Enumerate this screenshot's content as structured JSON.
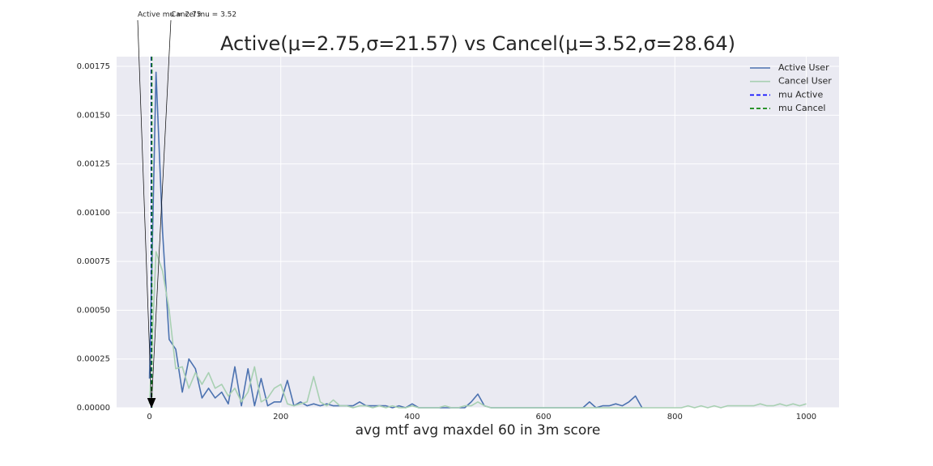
{
  "chart_data": {
    "type": "line",
    "title": "Active(μ=2.75,σ=21.57) vs Cancel(μ=3.52,σ=28.64)",
    "x_label": "avg mtf avg maxdel 60 in 3m score",
    "x": [
      0,
      10,
      20,
      30,
      40,
      50,
      60,
      70,
      80,
      90,
      100,
      110,
      120,
      130,
      140,
      150,
      160,
      170,
      180,
      190,
      200,
      210,
      220,
      230,
      240,
      250,
      260,
      270,
      280,
      290,
      300,
      310,
      320,
      330,
      340,
      350,
      360,
      370,
      380,
      390,
      400,
      410,
      420,
      430,
      440,
      450,
      460,
      470,
      480,
      490,
      500,
      510,
      520,
      530,
      540,
      550,
      560,
      570,
      580,
      590,
      600,
      610,
      620,
      630,
      640,
      650,
      660,
      670,
      680,
      690,
      700,
      710,
      720,
      730,
      740,
      750,
      760,
      770,
      780,
      790,
      800,
      810,
      820,
      830,
      840,
      850,
      860,
      870,
      880,
      890,
      900,
      910,
      920,
      930,
      940,
      950,
      960,
      970,
      980,
      990,
      1000
    ],
    "series": [
      {
        "name": "Active User",
        "color": "#4c72b0",
        "values": [
          0.00015,
          0.00172,
          0.0009,
          0.00035,
          0.0003,
          8e-05,
          0.00025,
          0.0002,
          5e-05,
          0.0001,
          5e-05,
          8e-05,
          2e-05,
          0.00021,
          1e-05,
          0.0002,
          1e-05,
          0.00015,
          1e-05,
          3e-05,
          3e-05,
          0.00014,
          1e-05,
          3e-05,
          1e-05,
          2e-05,
          1e-05,
          2e-05,
          1e-05,
          1e-05,
          1e-05,
          1e-05,
          3e-05,
          1e-05,
          1e-05,
          1e-05,
          1e-05,
          0,
          1e-05,
          0,
          2e-05,
          0,
          0,
          0,
          0,
          0,
          0,
          0,
          0,
          3e-05,
          7e-05,
          1e-05,
          0,
          0,
          0,
          0,
          0,
          0,
          0,
          0,
          0,
          0,
          0,
          0,
          0,
          0,
          0,
          3e-05,
          0,
          1e-05,
          1e-05,
          2e-05,
          1e-05,
          3e-05,
          6e-05,
          0,
          null,
          null,
          null,
          null,
          null,
          null,
          null,
          null,
          null,
          null,
          null,
          null,
          null,
          null,
          null,
          null,
          null,
          null,
          null,
          null,
          null,
          null,
          null,
          null,
          null
        ]
      },
      {
        "name": "Cancel User",
        "color": "#a8d0b2",
        "values": [
          2e-05,
          0.0008,
          0.0007,
          0.0005,
          0.0002,
          0.00021,
          0.0001,
          0.00018,
          0.00012,
          0.00018,
          0.0001,
          0.00012,
          6e-05,
          0.0001,
          3e-05,
          8e-05,
          0.00021,
          3e-05,
          5e-05,
          0.0001,
          0.00012,
          2e-05,
          1e-05,
          2e-05,
          3e-05,
          0.00016,
          3e-05,
          1e-05,
          4e-05,
          1e-05,
          1e-05,
          0,
          1e-05,
          1e-05,
          0,
          1e-05,
          0,
          1e-05,
          0,
          0,
          1e-05,
          0,
          0,
          0,
          0,
          1e-05,
          0,
          0,
          1e-05,
          1e-05,
          3e-05,
          1e-05,
          0,
          0,
          0,
          0,
          0,
          0,
          0,
          0,
          0,
          0,
          0,
          0,
          0,
          0,
          0,
          0,
          0,
          0,
          0,
          0,
          0,
          0,
          0,
          0,
          0,
          0,
          0,
          0,
          0,
          0,
          1e-05,
          0,
          1e-05,
          0,
          1e-05,
          0,
          1e-05,
          1e-05,
          1e-05,
          1e-05,
          1e-05,
          2e-05,
          1e-05,
          1e-05,
          2e-05,
          1e-05,
          2e-05,
          1e-05,
          2e-05
        ]
      }
    ],
    "vlines": [
      {
        "name": "mu Active",
        "x": 2.75,
        "color": "#0000ff"
      },
      {
        "name": "mu Cancel",
        "x": 3.52,
        "color": "#008000"
      }
    ],
    "annotations": [
      {
        "text": "Active mu = 2.75",
        "x": 2.75,
        "y": 0
      },
      {
        "text": "Cancel mu = 3.52",
        "x": 3.52,
        "y": 0
      }
    ],
    "xlim": [
      -50,
      1050
    ],
    "ylim": [
      0,
      0.0018
    ],
    "xticks": [
      0,
      200,
      400,
      600,
      800,
      1000
    ],
    "yticks": [
      {
        "value": 0,
        "label": "0.00000"
      },
      {
        "value": 0.00025,
        "label": "0.00025"
      },
      {
        "value": 0.0005,
        "label": "0.00050"
      },
      {
        "value": 0.00075,
        "label": "0.00075"
      },
      {
        "value": 0.001,
        "label": "0.00100"
      },
      {
        "value": 0.00125,
        "label": "0.00125"
      },
      {
        "value": 0.0015,
        "label": "0.00150"
      },
      {
        "value": 0.00175,
        "label": "0.00175"
      }
    ],
    "grid": true,
    "legend": "upper right"
  }
}
